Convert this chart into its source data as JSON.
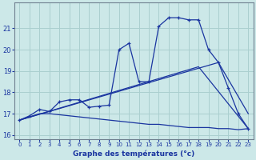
{
  "xlabel": "Graphe des températures (°c)",
  "background_color": "#cce8e8",
  "grid_color": "#aacfcf",
  "line_color": "#1a35a0",
  "xlim": [
    -0.5,
    23.5
  ],
  "ylim": [
    15.8,
    22.2
  ],
  "xticks": [
    0,
    1,
    2,
    3,
    4,
    5,
    6,
    7,
    8,
    9,
    10,
    11,
    12,
    13,
    14,
    15,
    16,
    17,
    18,
    19,
    20,
    21,
    22,
    23
  ],
  "yticks": [
    16,
    17,
    18,
    19,
    20,
    21
  ],
  "series": [
    {
      "x": [
        0,
        1,
        2,
        3,
        4,
        5,
        6,
        7,
        8,
        9,
        10,
        11,
        12,
        13,
        14,
        15,
        16,
        17,
        18,
        19,
        20,
        21,
        22,
        23
      ],
      "y": [
        16.7,
        16.85,
        17.0,
        17.0,
        16.95,
        16.9,
        16.85,
        16.8,
        16.75,
        16.7,
        16.65,
        16.6,
        16.55,
        16.5,
        16.5,
        16.45,
        16.4,
        16.35,
        16.35,
        16.35,
        16.3,
        16.3,
        16.25,
        16.3
      ],
      "marker": false
    },
    {
      "x": [
        0,
        20,
        23
      ],
      "y": [
        16.7,
        19.4,
        17.0
      ],
      "marker": false
    },
    {
      "x": [
        0,
        18,
        23
      ],
      "y": [
        16.7,
        19.2,
        16.3
      ],
      "marker": false
    },
    {
      "x": [
        0,
        1,
        2,
        3,
        4,
        5,
        6,
        7,
        8,
        9,
        10,
        11,
        12,
        13,
        14,
        15,
        16,
        17,
        18,
        19,
        20,
        21,
        22,
        23
      ],
      "y": [
        16.7,
        16.9,
        17.2,
        17.1,
        17.55,
        17.65,
        17.65,
        17.3,
        17.35,
        17.4,
        20.0,
        20.3,
        18.5,
        18.5,
        21.1,
        21.5,
        21.5,
        21.4,
        21.4,
        20.0,
        19.4,
        18.2,
        17.0,
        16.3
      ],
      "marker": true
    }
  ]
}
